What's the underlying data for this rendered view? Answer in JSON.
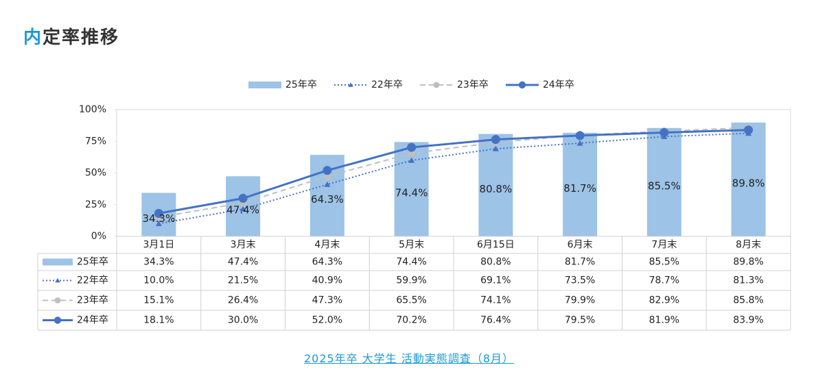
{
  "header": {
    "title_accent": "内",
    "title": "定率推移"
  },
  "chart_data": {
    "type": "combo",
    "categories": [
      "3月1日",
      "3月末",
      "4月末",
      "5月末",
      "6月15日",
      "6月末",
      "7月末",
      "8月末"
    ],
    "series": [
      {
        "name": "25年卒",
        "type": "bar",
        "color": "#9dc3e6",
        "values": [
          34.3,
          47.4,
          64.3,
          74.4,
          80.8,
          81.7,
          85.5,
          89.8
        ],
        "value_labels": [
          "34.3%",
          "47.4%",
          "64.3%",
          "74.4%",
          "80.8%",
          "81.7%",
          "85.5%",
          "89.8%"
        ]
      },
      {
        "name": "22年卒",
        "type": "line",
        "dash": "dotted",
        "marker": "triangle",
        "color": "#4472c4",
        "values": [
          10.0,
          21.5,
          40.9,
          59.9,
          69.1,
          73.5,
          78.7,
          81.3
        ],
        "value_labels": [
          "10.0%",
          "21.5%",
          "40.9%",
          "59.9%",
          "69.1%",
          "73.5%",
          "78.7%",
          "81.3%"
        ]
      },
      {
        "name": "23年卒",
        "type": "line",
        "dash": "dashed",
        "marker": "circle",
        "color": "#bfbfbf",
        "values": [
          15.1,
          26.4,
          47.3,
          65.5,
          74.1,
          79.9,
          82.9,
          85.8
        ],
        "value_labels": [
          "15.1%",
          "26.4%",
          "47.3%",
          "65.5%",
          "74.1%",
          "79.9%",
          "82.9%",
          "85.8%"
        ]
      },
      {
        "name": "24年卒",
        "type": "line",
        "dash": "solid",
        "marker": "circle",
        "color": "#4472c4",
        "values": [
          18.1,
          30.0,
          52.0,
          70.2,
          76.4,
          79.5,
          81.9,
          83.9
        ],
        "value_labels": [
          "18.1%",
          "30.0%",
          "52.0%",
          "70.2%",
          "76.4%",
          "79.5%",
          "81.9%",
          "83.9%"
        ]
      }
    ],
    "ylim": [
      0,
      100
    ],
    "yticks": [
      {
        "value": 0,
        "label": "0%"
      },
      {
        "value": 25,
        "label": "25%"
      },
      {
        "value": 50,
        "label": "50%"
      },
      {
        "value": 75,
        "label": "75%"
      },
      {
        "value": 100,
        "label": "100%"
      }
    ],
    "grid": false,
    "legend": "top"
  },
  "footer": {
    "link": "2025年卒 大学生 活動実態調査（8月）"
  }
}
